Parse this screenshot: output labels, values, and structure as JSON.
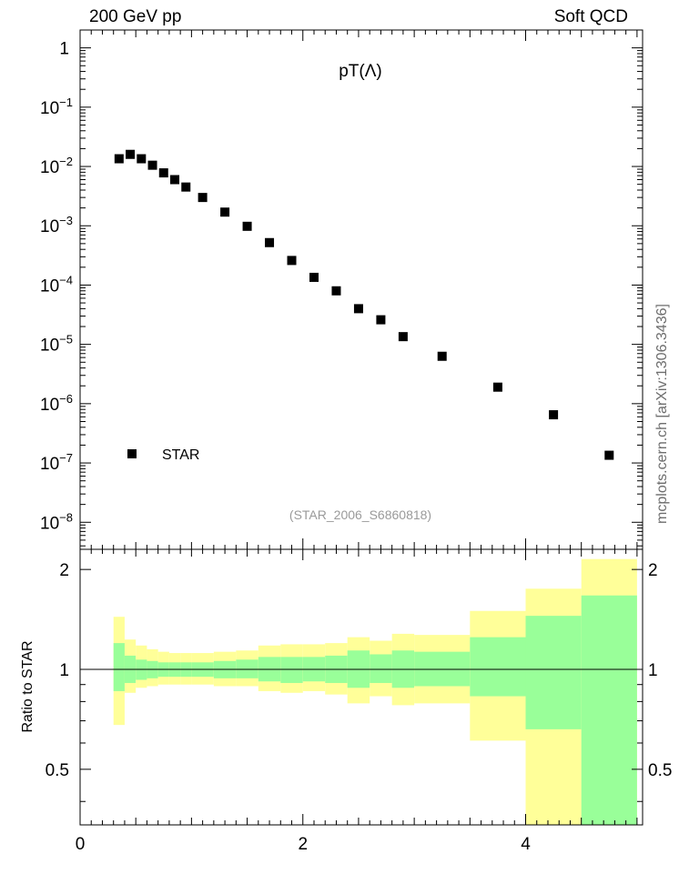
{
  "header": {
    "left": "200 GeV pp",
    "right": "Soft QCD"
  },
  "side_label": "mcplots.cern.ch [arXiv:1306.3436]",
  "chart_data": [
    {
      "type": "scatter",
      "title": "pT(Λ)",
      "xlim": [
        0,
        5.05
      ],
      "ylim": [
        3.5e-09,
        2
      ],
      "yscale": "log",
      "yticks": [
        {
          "value": 1,
          "label": "1"
        },
        {
          "value": 0.1,
          "label": "10",
          "exp": "−1"
        },
        {
          "value": 0.01,
          "label": "10",
          "exp": "−2"
        },
        {
          "value": 0.001,
          "label": "10",
          "exp": "−3"
        },
        {
          "value": 0.0001,
          "label": "10",
          "exp": "−4"
        },
        {
          "value": 1e-05,
          "label": "10",
          "exp": "−5"
        },
        {
          "value": 1e-06,
          "label": "10",
          "exp": "−6"
        },
        {
          "value": 1e-07,
          "label": "10",
          "exp": "−7"
        },
        {
          "value": 1e-08,
          "label": "10",
          "exp": "−8"
        }
      ],
      "legend": {
        "position": "bottom-left",
        "entries": [
          "STAR"
        ]
      },
      "annotation": "(STAR_2006_S6860818)",
      "series": [
        {
          "name": "STAR",
          "marker": "square",
          "color": "#000000",
          "x": [
            0.35,
            0.45,
            0.55,
            0.65,
            0.75,
            0.85,
            0.95,
            1.1,
            1.3,
            1.5,
            1.7,
            1.9,
            2.1,
            2.3,
            2.5,
            2.7,
            2.9,
            3.25,
            3.75,
            4.25,
            4.75
          ],
          "y": [
            0.0135,
            0.016,
            0.0135,
            0.0105,
            0.0078,
            0.006,
            0.0045,
            0.003,
            0.0017,
            0.00098,
            0.00052,
            0.00026,
            0.000135,
            8e-05,
            4e-05,
            2.6e-05,
            1.35e-05,
            6.3e-06,
            1.9e-06,
            6.5e-07,
            1.35e-07
          ]
        }
      ]
    },
    {
      "type": "area",
      "ylabel": "Ratio to STAR",
      "xlim": [
        0,
        5.05
      ],
      "ylim": [
        0.34,
        2.3
      ],
      "xticks": [
        0,
        2,
        4
      ],
      "yticks": [
        0.5,
        1,
        2
      ],
      "reference_line": 1,
      "colors": {
        "outer_band": "#ffff99",
        "inner_band": "#99ff99",
        "line": "#000000"
      },
      "bins": [
        {
          "x0": 0.3,
          "x1": 0.4,
          "outer": [
            0.68,
            1.44
          ],
          "inner": [
            0.86,
            1.2
          ]
        },
        {
          "x0": 0.4,
          "x1": 0.5,
          "outer": [
            0.85,
            1.23
          ],
          "inner": [
            0.91,
            1.1
          ]
        },
        {
          "x0": 0.5,
          "x1": 0.6,
          "outer": [
            0.88,
            1.18
          ],
          "inner": [
            0.93,
            1.07
          ]
        },
        {
          "x0": 0.6,
          "x1": 0.7,
          "outer": [
            0.89,
            1.15
          ],
          "inner": [
            0.94,
            1.06
          ]
        },
        {
          "x0": 0.7,
          "x1": 0.8,
          "outer": [
            0.9,
            1.13
          ],
          "inner": [
            0.95,
            1.05
          ]
        },
        {
          "x0": 0.8,
          "x1": 0.9,
          "outer": [
            0.9,
            1.12
          ],
          "inner": [
            0.95,
            1.05
          ]
        },
        {
          "x0": 0.9,
          "x1": 1.0,
          "outer": [
            0.9,
            1.12
          ],
          "inner": [
            0.95,
            1.05
          ]
        },
        {
          "x0": 1.0,
          "x1": 1.2,
          "outer": [
            0.9,
            1.12
          ],
          "inner": [
            0.95,
            1.05
          ]
        },
        {
          "x0": 1.2,
          "x1": 1.4,
          "outer": [
            0.89,
            1.13
          ],
          "inner": [
            0.94,
            1.06
          ]
        },
        {
          "x0": 1.4,
          "x1": 1.6,
          "outer": [
            0.89,
            1.14
          ],
          "inner": [
            0.94,
            1.07
          ]
        },
        {
          "x0": 1.6,
          "x1": 1.8,
          "outer": [
            0.86,
            1.18
          ],
          "inner": [
            0.92,
            1.09
          ]
        },
        {
          "x0": 1.8,
          "x1": 2.0,
          "outer": [
            0.85,
            1.19
          ],
          "inner": [
            0.91,
            1.09
          ]
        },
        {
          "x0": 2.0,
          "x1": 2.2,
          "outer": [
            0.86,
            1.19
          ],
          "inner": [
            0.92,
            1.09
          ]
        },
        {
          "x0": 2.2,
          "x1": 2.4,
          "outer": [
            0.84,
            1.2
          ],
          "inner": [
            0.91,
            1.1
          ]
        },
        {
          "x0": 2.4,
          "x1": 2.6,
          "outer": [
            0.79,
            1.25
          ],
          "inner": [
            0.88,
            1.14
          ]
        },
        {
          "x0": 2.6,
          "x1": 2.8,
          "outer": [
            0.83,
            1.22
          ],
          "inner": [
            0.91,
            1.11
          ]
        },
        {
          "x0": 2.8,
          "x1": 3.0,
          "outer": [
            0.78,
            1.28
          ],
          "inner": [
            0.88,
            1.14
          ]
        },
        {
          "x0": 3.0,
          "x1": 3.5,
          "outer": [
            0.79,
            1.27
          ],
          "inner": [
            0.89,
            1.13
          ]
        },
        {
          "x0": 3.5,
          "x1": 4.0,
          "outer": [
            0.61,
            1.5
          ],
          "inner": [
            0.83,
            1.25
          ]
        },
        {
          "x0": 4.0,
          "x1": 4.5,
          "outer": [
            0.34,
            1.75
          ],
          "inner": [
            0.66,
            1.45
          ]
        },
        {
          "x0": 4.5,
          "x1": 5.0,
          "outer": [
            0.34,
            2.15
          ],
          "inner": [
            0.34,
            1.67
          ]
        }
      ]
    }
  ]
}
